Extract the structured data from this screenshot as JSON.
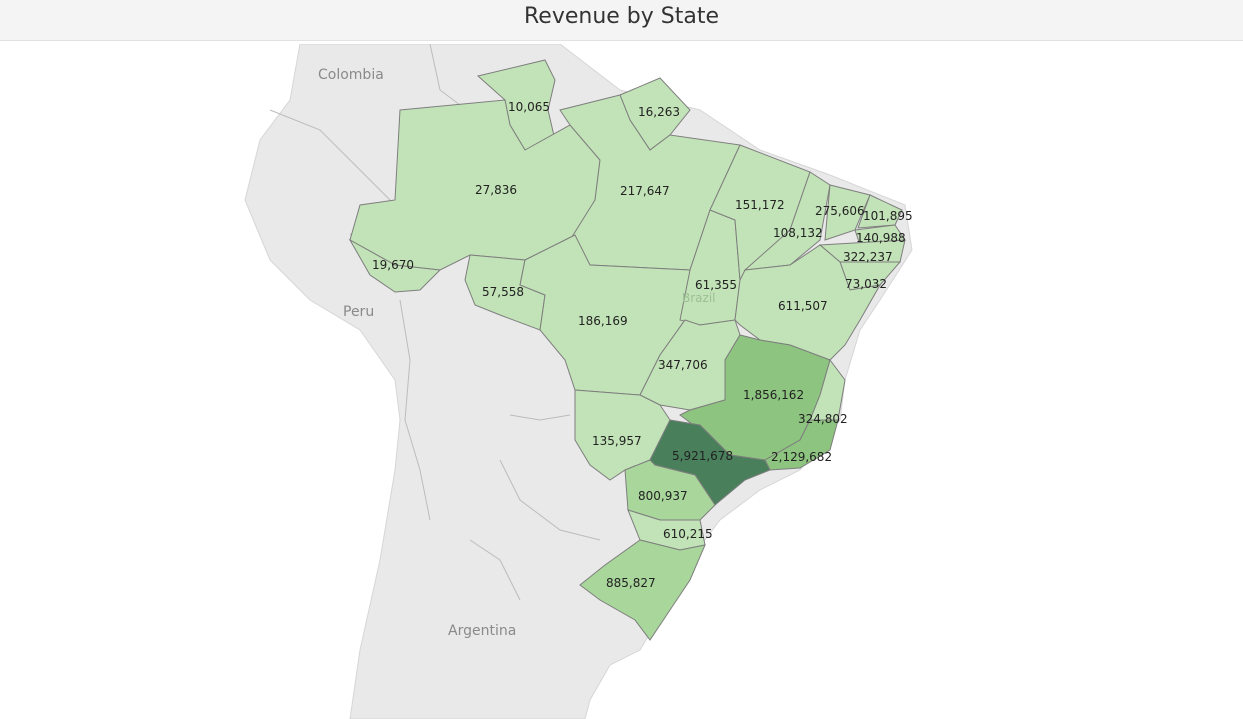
{
  "title": "Revenue by State",
  "colors": {
    "background": "#ffffff",
    "land": "#e8e8e8",
    "water_area": "#ffffff",
    "low": "#c2e3b7",
    "mid": "#a8d69b",
    "high": "#8dc47f",
    "max": "#4a7f5c"
  },
  "map": {
    "countries": [
      {
        "name": "Colombia"
      },
      {
        "name": "Peru"
      },
      {
        "name": "Argentina"
      },
      {
        "name": "Brazil"
      }
    ],
    "states": [
      {
        "value": "10,065",
        "level": "low"
      },
      {
        "value": "16,263",
        "level": "low"
      },
      {
        "value": "27,836",
        "level": "low"
      },
      {
        "value": "217,647",
        "level": "low"
      },
      {
        "value": "151,172",
        "level": "low"
      },
      {
        "value": "275,606",
        "level": "low"
      },
      {
        "value": "101,895",
        "level": "low"
      },
      {
        "value": "108,132",
        "level": "low"
      },
      {
        "value": "140,988",
        "level": "low"
      },
      {
        "value": "322,237",
        "level": "low"
      },
      {
        "value": "19,670",
        "level": "low"
      },
      {
        "value": "57,558",
        "level": "low"
      },
      {
        "value": "61,355",
        "level": "low"
      },
      {
        "value": "73,032",
        "level": "low"
      },
      {
        "value": "186,169",
        "level": "low"
      },
      {
        "value": "611,507",
        "level": "low"
      },
      {
        "value": "347,706",
        "level": "low"
      },
      {
        "value": "1,856,162",
        "level": "high"
      },
      {
        "value": "324,802",
        "level": "low"
      },
      {
        "value": "135,957",
        "level": "low"
      },
      {
        "value": "5,921,678",
        "level": "max"
      },
      {
        "value": "2,129,682",
        "level": "high"
      },
      {
        "value": "800,937",
        "level": "mid"
      },
      {
        "value": "610,215",
        "level": "low"
      },
      {
        "value": "885,827",
        "level": "mid"
      }
    ]
  }
}
